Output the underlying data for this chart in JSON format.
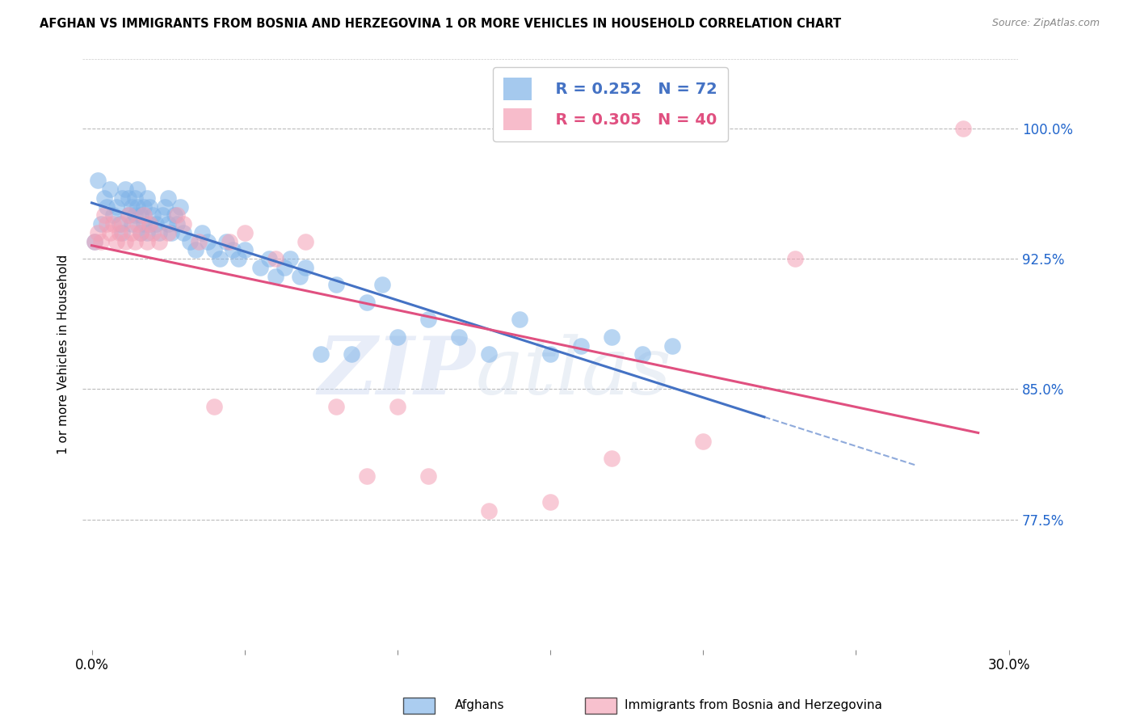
{
  "title": "AFGHAN VS IMMIGRANTS FROM BOSNIA AND HERZEGOVINA 1 OR MORE VEHICLES IN HOUSEHOLD CORRELATION CHART",
  "source": "Source: ZipAtlas.com",
  "ylabel": "1 or more Vehicles in Household",
  "ytick_labels": [
    "100.0%",
    "92.5%",
    "85.0%",
    "77.5%"
  ],
  "ytick_values": [
    1.0,
    0.925,
    0.85,
    0.775
  ],
  "xlim": [
    0.0,
    0.3
  ],
  "ylim": [
    0.7,
    1.04
  ],
  "blue_color": "#7FB3E8",
  "pink_color": "#F4A0B5",
  "blue_line_color": "#4472C4",
  "pink_line_color": "#E05080",
  "blue_R": 0.252,
  "blue_N": 72,
  "pink_R": 0.305,
  "pink_N": 40,
  "afghans_x": [
    0.001,
    0.002,
    0.003,
    0.004,
    0.005,
    0.006,
    0.007,
    0.008,
    0.009,
    0.01,
    0.01,
    0.011,
    0.012,
    0.012,
    0.013,
    0.013,
    0.014,
    0.014,
    0.015,
    0.015,
    0.016,
    0.016,
    0.017,
    0.017,
    0.018,
    0.018,
    0.019,
    0.019,
    0.02,
    0.021,
    0.022,
    0.023,
    0.024,
    0.025,
    0.025,
    0.026,
    0.027,
    0.028,
    0.029,
    0.03,
    0.032,
    0.034,
    0.036,
    0.038,
    0.04,
    0.042,
    0.044,
    0.046,
    0.048,
    0.05,
    0.055,
    0.058,
    0.06,
    0.063,
    0.065,
    0.068,
    0.07,
    0.075,
    0.08,
    0.085,
    0.09,
    0.095,
    0.1,
    0.11,
    0.12,
    0.13,
    0.14,
    0.15,
    0.16,
    0.17,
    0.18,
    0.19
  ],
  "afghans_y": [
    0.935,
    0.97,
    0.945,
    0.96,
    0.955,
    0.965,
    0.95,
    0.955,
    0.945,
    0.96,
    0.94,
    0.965,
    0.95,
    0.96,
    0.945,
    0.955,
    0.95,
    0.96,
    0.955,
    0.965,
    0.94,
    0.95,
    0.945,
    0.955,
    0.94,
    0.96,
    0.945,
    0.955,
    0.95,
    0.945,
    0.94,
    0.95,
    0.955,
    0.96,
    0.945,
    0.94,
    0.95,
    0.945,
    0.955,
    0.94,
    0.935,
    0.93,
    0.94,
    0.935,
    0.93,
    0.925,
    0.935,
    0.93,
    0.925,
    0.93,
    0.92,
    0.925,
    0.915,
    0.92,
    0.925,
    0.915,
    0.92,
    0.87,
    0.91,
    0.87,
    0.9,
    0.91,
    0.88,
    0.89,
    0.88,
    0.87,
    0.89,
    0.87,
    0.875,
    0.88,
    0.87,
    0.875
  ],
  "bosnia_x": [
    0.001,
    0.002,
    0.003,
    0.004,
    0.005,
    0.006,
    0.007,
    0.008,
    0.009,
    0.01,
    0.011,
    0.012,
    0.013,
    0.014,
    0.015,
    0.016,
    0.017,
    0.018,
    0.019,
    0.02,
    0.022,
    0.025,
    0.028,
    0.03,
    0.035,
    0.04,
    0.045,
    0.05,
    0.06,
    0.07,
    0.08,
    0.09,
    0.1,
    0.11,
    0.13,
    0.15,
    0.17,
    0.2,
    0.23,
    0.285
  ],
  "bosnia_y": [
    0.935,
    0.94,
    0.935,
    0.95,
    0.945,
    0.94,
    0.945,
    0.935,
    0.94,
    0.945,
    0.935,
    0.95,
    0.94,
    0.935,
    0.945,
    0.94,
    0.95,
    0.935,
    0.945,
    0.94,
    0.935,
    0.94,
    0.95,
    0.945,
    0.935,
    0.84,
    0.935,
    0.94,
    0.925,
    0.935,
    0.84,
    0.8,
    0.84,
    0.8,
    0.78,
    0.785,
    0.81,
    0.82,
    0.925,
    1.0
  ],
  "legend_label_blue": "Afghans",
  "legend_label_pink": "Immigrants from Bosnia and Herzegovina",
  "watermark_zip": "ZIP",
  "watermark_atlas": "atlas",
  "background_color": "#ffffff",
  "grid_color": "#bbbbbb"
}
